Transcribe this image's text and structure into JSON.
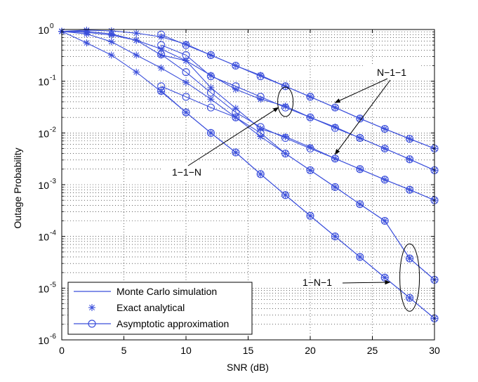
{
  "chart_data": {
    "type": "line",
    "xlabel": "SNR (dB)",
    "ylabel": "Outage Probability",
    "xlim": [
      0,
      30
    ],
    "ylim_log10": [
      -6,
      0
    ],
    "y_scale": "log",
    "grid": true,
    "x_ticks": [
      0,
      5,
      10,
      15,
      20,
      25,
      30
    ],
    "y_ticks": [
      {
        "base": "10",
        "exp": "0"
      },
      {
        "base": "10",
        "exp": "-1"
      },
      {
        "base": "10",
        "exp": "-2"
      },
      {
        "base": "10",
        "exp": "-3"
      },
      {
        "base": "10",
        "exp": "-4"
      },
      {
        "base": "10",
        "exp": "-5"
      },
      {
        "base": "10",
        "exp": "-6"
      }
    ],
    "series_color": "#3b4fdb",
    "legend": {
      "placement": "bottom-left",
      "entries": [
        {
          "label": "Monte Carlo simulation",
          "marker": "line"
        },
        {
          "label": "Exact analytical",
          "marker": "asterisk"
        },
        {
          "label": "Asymptotic approximation",
          "marker": "circle-line"
        }
      ]
    },
    "annotations": [
      {
        "text": "N−1−1",
        "x": 23.5,
        "y": 0.1
      },
      {
        "text": "1−1−N",
        "x": 8.6,
        "y": 0.0026
      },
      {
        "text": "1−N−1",
        "x": 21.8,
        "y": 1.35e-05
      }
    ],
    "series": [
      {
        "name": "N-1-1 (upper)",
        "group": "N-1-1",
        "sim": [
          [
            0,
            0.92
          ],
          [
            2,
            0.97
          ],
          [
            4,
            0.94
          ],
          [
            6,
            0.85
          ],
          [
            8,
            0.72
          ],
          [
            10,
            0.52
          ],
          [
            12,
            0.32
          ],
          [
            14,
            0.2
          ],
          [
            16,
            0.13
          ],
          [
            18,
            0.08
          ],
          [
            20,
            0.05
          ],
          [
            22,
            0.031
          ],
          [
            24,
            0.019
          ],
          [
            26,
            0.012
          ],
          [
            28,
            0.0077
          ],
          [
            30,
            0.005
          ]
        ],
        "asym": [
          [
            8,
            0.8
          ],
          [
            10,
            0.5
          ],
          [
            12,
            0.32
          ],
          [
            14,
            0.2
          ],
          [
            16,
            0.125
          ],
          [
            18,
            0.08
          ],
          [
            20,
            0.05
          ],
          [
            22,
            0.031
          ],
          [
            24,
            0.019
          ],
          [
            26,
            0.012
          ],
          [
            28,
            0.0077
          ],
          [
            30,
            0.005
          ]
        ]
      },
      {
        "name": "N-1-1 (lower)",
        "group": "N-1-1",
        "sim": [
          [
            0,
            0.92
          ],
          [
            2,
            0.88
          ],
          [
            4,
            0.78
          ],
          [
            6,
            0.62
          ],
          [
            8,
            0.42
          ],
          [
            10,
            0.25
          ],
          [
            12,
            0.13
          ],
          [
            14,
            0.07
          ],
          [
            16,
            0.045
          ],
          [
            18,
            0.033
          ],
          [
            20,
            0.02
          ],
          [
            22,
            0.013
          ],
          [
            24,
            0.008
          ],
          [
            26,
            0.005
          ],
          [
            28,
            0.0031
          ],
          [
            30,
            0.0019
          ]
        ],
        "asym": [
          [
            8,
            0.5
          ],
          [
            10,
            0.32
          ],
          [
            12,
            0.125
          ],
          [
            14,
            0.08
          ],
          [
            16,
            0.05
          ],
          [
            18,
            0.031
          ],
          [
            20,
            0.02
          ],
          [
            22,
            0.0125
          ],
          [
            24,
            0.008
          ],
          [
            26,
            0.005
          ],
          [
            28,
            0.0031
          ],
          [
            30,
            0.0019
          ]
        ]
      },
      {
        "name": "1-1-N (upper)",
        "group": "1-1-N",
        "sim": [
          [
            0,
            0.92
          ],
          [
            2,
            0.92
          ],
          [
            4,
            0.82
          ],
          [
            6,
            0.62
          ],
          [
            8,
            0.32
          ],
          [
            10,
            0.25
          ],
          [
            12,
            0.075
          ],
          [
            14,
            0.03
          ],
          [
            16,
            0.012
          ],
          [
            18,
            0.0085
          ],
          [
            20,
            0.0053
          ],
          [
            22,
            0.0032
          ],
          [
            24,
            0.002
          ],
          [
            26,
            0.00125
          ],
          [
            28,
            0.0008
          ],
          [
            30,
            0.0005
          ]
        ],
        "asym": [
          [
            8,
            0.33
          ],
          [
            10,
            0.15
          ],
          [
            12,
            0.06
          ],
          [
            14,
            0.025
          ],
          [
            16,
            0.013
          ],
          [
            18,
            0.008
          ],
          [
            20,
            0.005
          ],
          [
            22,
            0.0032
          ],
          [
            24,
            0.002
          ],
          [
            26,
            0.00125
          ],
          [
            28,
            0.0008
          ],
          [
            30,
            0.0005
          ]
        ]
      },
      {
        "name": "1-1-N (lower)",
        "group": "1-1-N",
        "sim": [
          [
            0,
            0.92
          ],
          [
            2,
            0.82
          ],
          [
            4,
            0.58
          ],
          [
            6,
            0.32
          ],
          [
            8,
            0.18
          ],
          [
            10,
            0.095
          ],
          [
            12,
            0.045
          ],
          [
            14,
            0.02
          ],
          [
            16,
            0.0085
          ],
          [
            18,
            0.004
          ],
          [
            20,
            0.0019
          ],
          [
            22,
            0.0009
          ],
          [
            24,
            0.00042
          ],
          [
            26,
            0.0002
          ],
          [
            28,
            3.75e-05
          ],
          [
            30,
            1.45e-05
          ]
        ],
        "asym": [
          [
            8,
            0.08
          ],
          [
            10,
            0.05
          ],
          [
            12,
            0.031
          ],
          [
            14,
            0.02
          ],
          [
            16,
            0.01
          ],
          [
            18,
            0.004
          ],
          [
            20,
            0.0019
          ],
          [
            22,
            0.0009
          ],
          [
            24,
            0.00042
          ],
          [
            26,
            0.0002
          ],
          [
            28,
            3.75e-05
          ],
          [
            30,
            1.45e-05
          ]
        ]
      },
      {
        "name": "1-N-1",
        "group": "1-N-1",
        "sim": [
          [
            0,
            0.92
          ],
          [
            2,
            0.55
          ],
          [
            4,
            0.32
          ],
          [
            6,
            0.15
          ],
          [
            8,
            0.063
          ],
          [
            10,
            0.025
          ],
          [
            12,
            0.01
          ],
          [
            14,
            0.0042
          ],
          [
            16,
            0.0016
          ],
          [
            18,
            0.00063
          ],
          [
            20,
            0.00025
          ],
          [
            22,
            0.0001
          ],
          [
            24,
            4e-05
          ],
          [
            26,
            1.6e-05
          ],
          [
            28,
            6.5e-06
          ],
          [
            30,
            2.6e-06
          ]
        ],
        "asym": [
          [
            8,
            0.065
          ],
          [
            10,
            0.025
          ],
          [
            12,
            0.01
          ],
          [
            14,
            0.0042
          ],
          [
            16,
            0.0016
          ],
          [
            18,
            0.00063
          ],
          [
            20,
            0.00025
          ],
          [
            22,
            0.0001
          ],
          [
            24,
            4e-05
          ],
          [
            26,
            1.6e-05
          ],
          [
            28,
            6.5e-06
          ],
          [
            30,
            2.6e-06
          ]
        ]
      }
    ]
  }
}
